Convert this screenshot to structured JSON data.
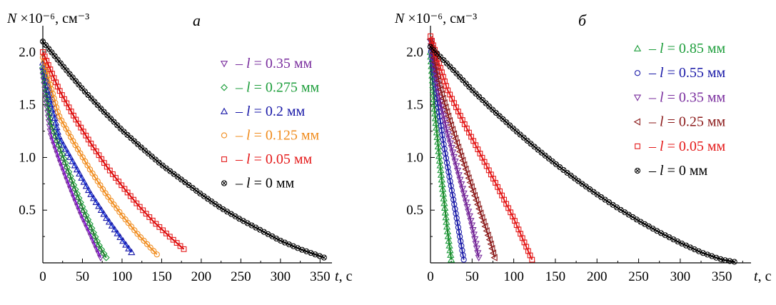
{
  "chart_data": [
    {
      "type": "scatter",
      "panel_label": "а",
      "ylabel": "N ×10⁻⁶, см⁻³",
      "xlabel": "t, с",
      "xlim": [
        0,
        365
      ],
      "ylim": [
        0,
        2.25
      ],
      "xticks": [
        0,
        50,
        100,
        150,
        200,
        250,
        300,
        350
      ],
      "yticks": [
        0.5,
        1.0,
        1.5,
        2.0
      ],
      "ytick_labels": [
        "0.5",
        "1.0",
        "1.5",
        "2.0"
      ],
      "legend_position": "top-right",
      "fit_lines": true,
      "series": [
        {
          "name": "– l = 0.35 мм",
          "color": "#7a2e9e",
          "fit_color": "#7b00d4",
          "marker": "triangle-down",
          "x": [
            0,
            10,
            20,
            30,
            40,
            50,
            60,
            70,
            73
          ],
          "y": [
            1.82,
            1.22,
            1.0,
            0.8,
            0.61,
            0.43,
            0.27,
            0.1,
            0.05
          ]
        },
        {
          "name": "– l = 0.275 мм",
          "color": "#1e9e3c",
          "fit_color": "#1a7a20",
          "marker": "diamond",
          "x": [
            0,
            10,
            20,
            30,
            40,
            50,
            60,
            70,
            80
          ],
          "y": [
            1.85,
            1.33,
            1.12,
            0.92,
            0.72,
            0.53,
            0.36,
            0.18,
            0.05
          ]
        },
        {
          "name": "– l = 0.2 мм",
          "color": "#1a1aa8",
          "fit_color": "#1f3fe0",
          "marker": "triangle-up",
          "x": [
            0,
            20,
            40,
            60,
            80,
            100,
            112
          ],
          "y": [
            1.9,
            1.2,
            0.93,
            0.66,
            0.43,
            0.22,
            0.1
          ]
        },
        {
          "name": "– l = 0.125 мм",
          "color": "#f08c1e",
          "fit_color": "#f08c1e",
          "marker": "circle",
          "x": [
            0,
            20,
            40,
            60,
            80,
            100,
            120,
            144
          ],
          "y": [
            1.95,
            1.4,
            1.13,
            0.88,
            0.65,
            0.45,
            0.27,
            0.08
          ]
        },
        {
          "name": "– l = 0.05 мм",
          "color": "#e41a1a",
          "fit_color": "#d40000",
          "marker": "square",
          "x": [
            0,
            20,
            40,
            60,
            80,
            100,
            120,
            140,
            160,
            178
          ],
          "y": [
            2.0,
            1.65,
            1.38,
            1.14,
            0.92,
            0.73,
            0.55,
            0.39,
            0.25,
            0.13
          ]
        },
        {
          "name": "– l = 0 мм",
          "color": "#000000",
          "fit_color": "#000000",
          "marker": "circle-x",
          "x": [
            0,
            25,
            50,
            75,
            100,
            125,
            150,
            175,
            200,
            225,
            250,
            275,
            300,
            325,
            355
          ],
          "y": [
            2.1,
            1.87,
            1.65,
            1.45,
            1.26,
            1.09,
            0.93,
            0.79,
            0.65,
            0.52,
            0.41,
            0.31,
            0.21,
            0.13,
            0.05
          ]
        }
      ]
    },
    {
      "type": "scatter",
      "panel_label": "б",
      "ylabel": "N ×10⁻⁶, см⁻³",
      "xlabel": "t, с",
      "xlim": [
        0,
        385
      ],
      "ylim": [
        0,
        2.25
      ],
      "xticks": [
        0,
        50,
        100,
        150,
        200,
        250,
        300,
        350
      ],
      "yticks": [
        0.5,
        1.0,
        1.5,
        2.0
      ],
      "ytick_labels": [
        "0.5",
        "1.0",
        "1.5",
        "2.0"
      ],
      "legend_position": "top-right",
      "fit_lines": true,
      "series": [
        {
          "name": "– l = 0.85 мм",
          "color": "#1e9e3c",
          "fit_color": "#1a7a20",
          "marker": "triangle-up",
          "x": [
            0,
            5,
            10,
            15,
            20,
            25
          ],
          "y": [
            2.0,
            1.45,
            1.05,
            0.68,
            0.33,
            0.03
          ]
        },
        {
          "name": "– l = 0.55 мм",
          "color": "#1a1aa8",
          "fit_color": "#1a1aa8",
          "marker": "circle",
          "x": [
            0,
            8,
            16,
            24,
            32,
            40
          ],
          "y": [
            2.05,
            1.55,
            1.12,
            0.76,
            0.4,
            0.03
          ]
        },
        {
          "name": "– l = 0.35 мм",
          "color": "#7a2e9e",
          "fit_color": "#6a1a8e",
          "marker": "triangle-down",
          "x": [
            0,
            10,
            20,
            30,
            40,
            50,
            58
          ],
          "y": [
            2.1,
            1.6,
            1.25,
            0.95,
            0.66,
            0.35,
            0.05
          ]
        },
        {
          "name": "– l = 0.25 мм",
          "color": "#8b1a1a",
          "fit_color": "#8b1a1a",
          "marker": "triangle-left",
          "x": [
            0,
            12,
            24,
            36,
            48,
            60,
            72,
            77
          ],
          "y": [
            2.12,
            1.65,
            1.33,
            1.04,
            0.76,
            0.48,
            0.2,
            0.05
          ]
        },
        {
          "name": "– l = 0.05 мм",
          "color": "#e41a1a",
          "fit_color": "#e41a1a",
          "marker": "square",
          "x": [
            0,
            20,
            40,
            60,
            80,
            100,
            122
          ],
          "y": [
            2.15,
            1.65,
            1.33,
            1.03,
            0.73,
            0.42,
            0.03
          ]
        },
        {
          "name": "– l = 0 мм",
          "color": "#000000",
          "fit_color": "#000000",
          "marker": "circle-x",
          "x": [
            0,
            25,
            50,
            75,
            100,
            125,
            150,
            175,
            200,
            225,
            250,
            275,
            300,
            325,
            350,
            365
          ],
          "y": [
            2.05,
            1.85,
            1.64,
            1.45,
            1.27,
            1.1,
            0.94,
            0.79,
            0.65,
            0.52,
            0.4,
            0.29,
            0.19,
            0.1,
            0.03,
            0.01
          ]
        }
      ]
    }
  ]
}
